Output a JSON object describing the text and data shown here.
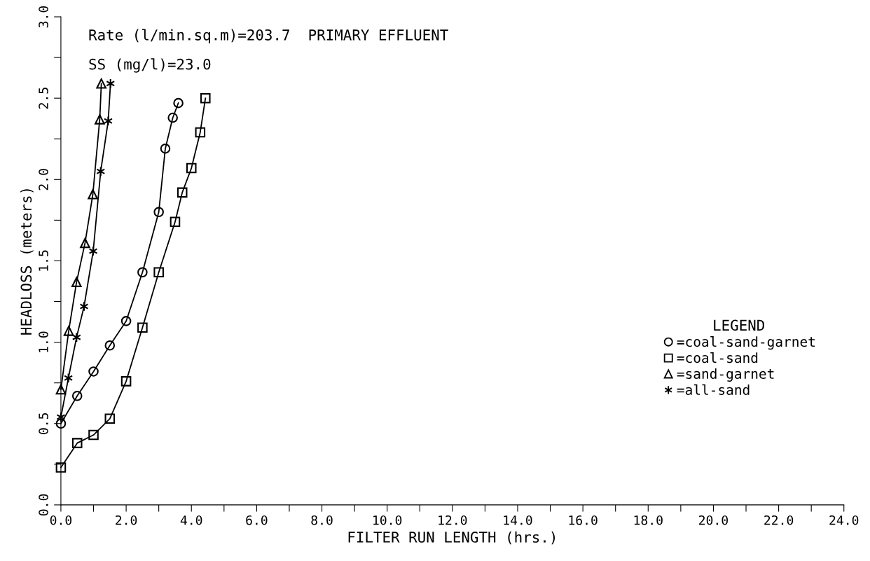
{
  "chart_data": {
    "type": "line",
    "title": "Rate (l/min.sq.m)=203.7  PRIMARY EFFLUENT",
    "subtitle": "SS (mg/l)=23.0",
    "xlabel": "FILTER RUN LENGTH (hrs.)",
    "ylabel": "HEADLOSS (meters)",
    "legend_title": "LEGEND",
    "legend": "right",
    "grid": false,
    "line_style": "solid",
    "xlim": [
      0,
      24
    ],
    "ylim": [
      0,
      3
    ],
    "xticks": [
      {
        "value": 0,
        "label": "0.0"
      },
      {
        "value": 1,
        "label": null
      },
      {
        "value": 2,
        "label": "2.0"
      },
      {
        "value": 3,
        "label": null
      },
      {
        "value": 4,
        "label": "4.0"
      },
      {
        "value": 5,
        "label": null
      },
      {
        "value": 6,
        "label": "6.0"
      },
      {
        "value": 7,
        "label": null
      },
      {
        "value": 8,
        "label": "8.0"
      },
      {
        "value": 9,
        "label": null
      },
      {
        "value": 10,
        "label": "10.0"
      },
      {
        "value": 11,
        "label": null
      },
      {
        "value": 12,
        "label": "12.0"
      },
      {
        "value": 13,
        "label": null
      },
      {
        "value": 14,
        "label": "14.0"
      },
      {
        "value": 15,
        "label": null
      },
      {
        "value": 16,
        "label": "16.0"
      },
      {
        "value": 17,
        "label": null
      },
      {
        "value": 18,
        "label": "18.0"
      },
      {
        "value": 19,
        "label": null
      },
      {
        "value": 20,
        "label": "20.0"
      },
      {
        "value": 21,
        "label": null
      },
      {
        "value": 22,
        "label": "22.0"
      },
      {
        "value": 23,
        "label": null
      },
      {
        "value": 24,
        "label": "24.0"
      }
    ],
    "yticks": [
      {
        "value": 0,
        "label": "0.0"
      },
      {
        "value": 0.25,
        "label": null
      },
      {
        "value": 0.5,
        "label": "0.5"
      },
      {
        "value": 0.75,
        "label": null
      },
      {
        "value": 1,
        "label": "1.0"
      },
      {
        "value": 1.25,
        "label": null
      },
      {
        "value": 1.5,
        "label": "1.5"
      },
      {
        "value": 1.75,
        "label": null
      },
      {
        "value": 2,
        "label": "2.0"
      },
      {
        "value": 2.25,
        "label": null
      },
      {
        "value": 2.5,
        "label": "2.5"
      },
      {
        "value": 2.75,
        "label": null
      },
      {
        "value": 3,
        "label": "3.0"
      }
    ],
    "series": [
      {
        "name": "=coal-sand-garnet",
        "color": "#000000",
        "marker": "circle",
        "x": [
          0,
          0.5,
          1.0,
          1.5,
          2.0,
          2.5,
          3.0,
          3.2,
          3.43,
          3.6
        ],
        "values": [
          0.5,
          0.67,
          0.82,
          0.98,
          1.13,
          1.43,
          1.8,
          2.19,
          2.38,
          2.47
        ]
      },
      {
        "name": "=coal-sand",
        "color": "#000000",
        "marker": "square",
        "x": [
          0,
          0.5,
          1.0,
          1.5,
          2.0,
          2.5,
          3.0,
          3.5,
          3.72,
          4.0,
          4.27,
          4.43
        ],
        "values": [
          0.23,
          0.38,
          0.43,
          0.53,
          0.76,
          1.09,
          1.43,
          1.74,
          1.92,
          2.07,
          2.29,
          2.5
        ]
      },
      {
        "name": "=sand-garnet",
        "color": "#000000",
        "marker": "triangle",
        "x": [
          0,
          0.24,
          0.48,
          0.74,
          0.98,
          1.19,
          1.24
        ],
        "values": [
          0.71,
          1.07,
          1.37,
          1.61,
          1.91,
          2.37,
          2.59
        ]
      },
      {
        "name": "=all-sand",
        "color": "#000000",
        "marker": "cross",
        "x": [
          0,
          0.23,
          0.48,
          0.71,
          0.99,
          1.22,
          1.45,
          1.52
        ],
        "values": [
          0.54,
          0.78,
          1.03,
          1.22,
          1.56,
          2.05,
          2.36,
          2.59
        ]
      }
    ]
  }
}
